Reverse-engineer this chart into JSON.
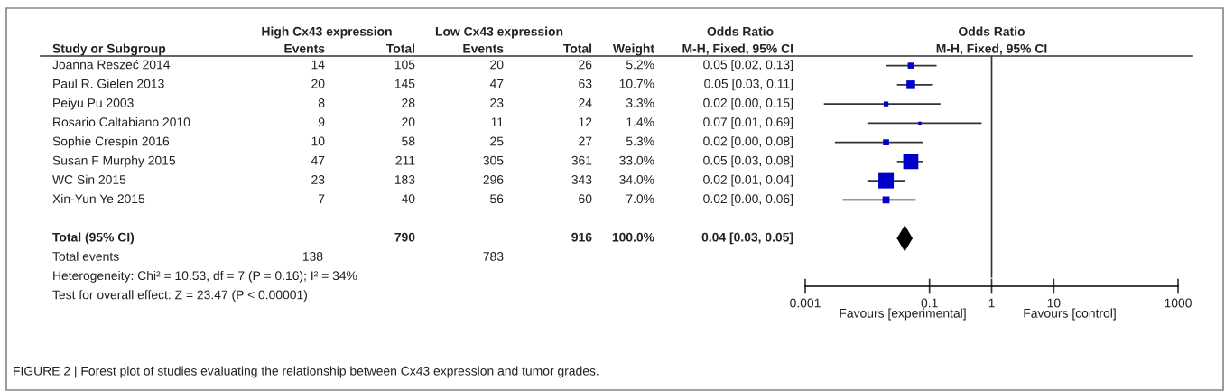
{
  "chart_data": [
    {
      "type": "other",
      "annotations": [
        "High Cx43 expression",
        "Low Cx43 expression",
        "Odds Ratio",
        "Study or Subgroup",
        "Events",
        "Total",
        "Events",
        "Total",
        "Weight",
        "M-H, Fixed, 95% CI",
        "Joanna Reszeć 2014",
        "14",
        "105",
        "20",
        "26",
        "5.2%",
        "0.05 [0.02, 0.13]",
        "Paul R. Gielen 2013",
        "20",
        "145",
        "47",
        "63",
        "10.7%",
        "0.05 [0.03, 0.11]",
        "Peiyu Pu 2003",
        "8",
        "28",
        "23",
        "24",
        "3.3%",
        "0.02 [0.00, 0.15]",
        "Rosario Caltabiano 2010",
        "9",
        "20",
        "11",
        "12",
        "1.4%",
        "0.07 [0.01, 0.69]",
        "Sophie Crespin 2016",
        "10",
        "58",
        "25",
        "27",
        "5.3%",
        "0.02 [0.00, 0.08]",
        "Susan F Murphy 2015",
        "47",
        "211",
        "305",
        "361",
        "33.0%",
        "0.05 [0.03, 0.08]",
        "WC Sin 2015",
        "23",
        "183",
        "296",
        "343",
        "34.0%",
        "0.02 [0.01, 0.04]",
        "Xin-Yun Ye 2015",
        "7",
        "40",
        "56",
        "60",
        "7.0%",
        "0.02 [0.00, 0.06]",
        "Total (95% CI)",
        "790",
        "916",
        "100.0%",
        "0.04 [0.03, 0.05]",
        "Total events",
        "138",
        "783",
        "Heterogeneity: Chi² = 10.53, df = 7 (P = 0.16); I² = 34%",
        "Test for overall effect: Z = 23.47 (P < 0.00001)",
        "FIGURE 2 | Forest plot of studies evaluating the relationship between Cx43 expression and tumor grades."
      ]
    },
    {
      "type": "scatter",
      "orientation": "horizontal",
      "title": "Odds Ratio",
      "subtitle": "M-H, Fixed, 95% CI",
      "categories": [
        null,
        null,
        null,
        null,
        null,
        null,
        null,
        null,
        null,
        null,
        null,
        null
      ],
      "series": [
        {
          "type": "bubble",
          "color": "#0000cc",
          "marker": "square",
          "values": [
            0.05,
            0.05,
            0.02,
            0.07,
            0.02,
            0.05,
            0.02,
            0.02,
            null,
            null,
            null,
            null
          ],
          "errors": [
            [
              0.02,
              0.13
            ],
            [
              0.03,
              0.11
            ],
            [
              0.002,
              0.15
            ],
            [
              0.01,
              0.69
            ],
            [
              0.003,
              0.08
            ],
            [
              0.03,
              0.08
            ],
            [
              0.01,
              0.04
            ],
            [
              0.004,
              0.06
            ],
            null,
            null,
            null,
            null
          ],
          "sizes": [
            0.153,
            0.315,
            0.097,
            0.041,
            0.156,
            0.971,
            1,
            0.206,
            null,
            null,
            null,
            null
          ]
        },
        {
          "type": "scatter",
          "color": "#000000",
          "marker": "diamond",
          "values": [
            null,
            null,
            null,
            null,
            null,
            null,
            null,
            null,
            null,
            0.04,
            null,
            null
          ],
          "errors": [
            null,
            null,
            null,
            null,
            null,
            null,
            null,
            null,
            null,
            [
              0.03,
              0.05
            ],
            null,
            null
          ]
        }
      ],
      "log": "x",
      "xlim": [
        0.001,
        1000
      ],
      "xticks": [
        0.001,
        0.1,
        1,
        10,
        1000
      ],
      "tick_labels": "x",
      "grid": false,
      "legend": false,
      "ref_lines": [
        {
          "axis": "x",
          "value": 1,
          "color": "#333333"
        }
      ],
      "annotations": [
        "Favours [experimental]",
        "Favours [control]"
      ]
    }
  ]
}
